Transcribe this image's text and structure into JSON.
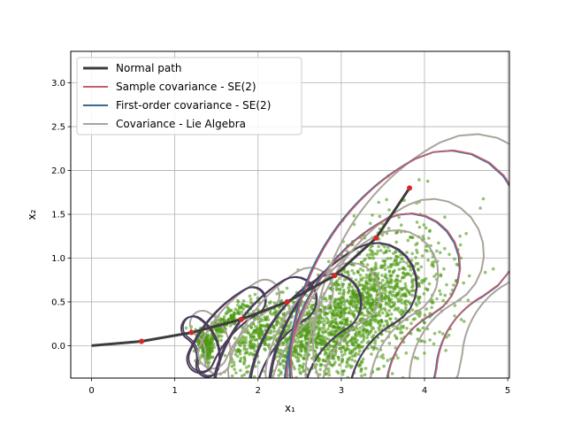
{
  "chart_data": {
    "type": "scatter",
    "xlabel": "x₁",
    "ylabel": "x₂",
    "xlim": [
      -0.25,
      5.02
    ],
    "ylim": [
      -0.37,
      3.36
    ],
    "xticks": [
      0,
      1,
      2,
      3,
      4,
      5
    ],
    "yticks": [
      0.0,
      0.5,
      1.0,
      1.5,
      2.0,
      2.5,
      3.0
    ],
    "grid": true,
    "legend_position": "top-left",
    "legend": [
      {
        "label": "Normal path",
        "color": "#3d3d3d"
      },
      {
        "label": "Sample covariance - SE(2)",
        "color": "#c4606e"
      },
      {
        "label": "First-order covariance - SE(2)",
        "color": "#3a6a93"
      },
      {
        "label": "Covariance - Lie Algebra",
        "color": "#aaa39b"
      }
    ],
    "colors": {
      "scatter": "#4f9a14",
      "mean_point": "#d62728",
      "normal_path": "#3d3d3d",
      "sample_cov": "#c4606e",
      "first_order_cov": "#3a6a93",
      "lie_algebra_cov": "#aaa39b",
      "overlap_cov": "#4b3d5c"
    },
    "normal_path": [
      [
        0.0,
        0.0
      ],
      [
        0.6,
        0.05
      ],
      [
        1.2,
        0.15
      ],
      [
        1.8,
        0.3
      ],
      [
        2.35,
        0.5
      ],
      [
        2.92,
        0.8
      ],
      [
        3.42,
        1.23
      ],
      [
        3.82,
        1.8
      ]
    ],
    "steps": [
      {
        "mean": [
          0.6,
          0.05
        ],
        "spread": 0.19,
        "arc_center": [
          1.0,
          -0.14
        ],
        "r_in": 0.3,
        "r_out": 0.5,
        "theta": [
          -0.2,
          1.0
        ]
      },
      {
        "mean": [
          1.2,
          0.15
        ],
        "spread": 0.28,
        "arc_center": [
          2.6,
          -0.75
        ],
        "r_in": 1.3,
        "r_out": 1.55,
        "theta": [
          2.07,
          2.7
        ]
      },
      {
        "mean": [
          1.8,
          0.3
        ],
        "spread": 0.42,
        "arc_center": [
          3.2,
          -0.8
        ],
        "r_in": 1.3,
        "r_out": 1.75,
        "theta": [
          2.1,
          2.85
        ]
      },
      {
        "mean": [
          2.35,
          0.5
        ],
        "spread": 0.58,
        "arc_center": [
          3.55,
          -0.7
        ],
        "r_in": 1.05,
        "r_out": 1.65,
        "theta": [
          2.08,
          2.92
        ]
      },
      {
        "mean": [
          2.92,
          0.8
        ],
        "spread": 0.74,
        "arc_center": [
          4.1,
          -0.65
        ],
        "r_in": 1.05,
        "r_out": 1.95,
        "theta": [
          2.05,
          3.0
        ]
      },
      {
        "mean": [
          3.42,
          1.23
        ],
        "spread": 0.9,
        "arc_center": [
          4.55,
          -0.55
        ],
        "r_in": 1.05,
        "r_out": 2.2,
        "theta": [
          2.05,
          3.1
        ]
      },
      {
        "mean": [
          3.82,
          1.8
        ],
        "spread": 1.06,
        "arc_center": [
          5.15,
          -0.35
        ],
        "r_in": 1.05,
        "r_out": 2.75,
        "theta": [
          2.05,
          3.05
        ]
      }
    ]
  }
}
